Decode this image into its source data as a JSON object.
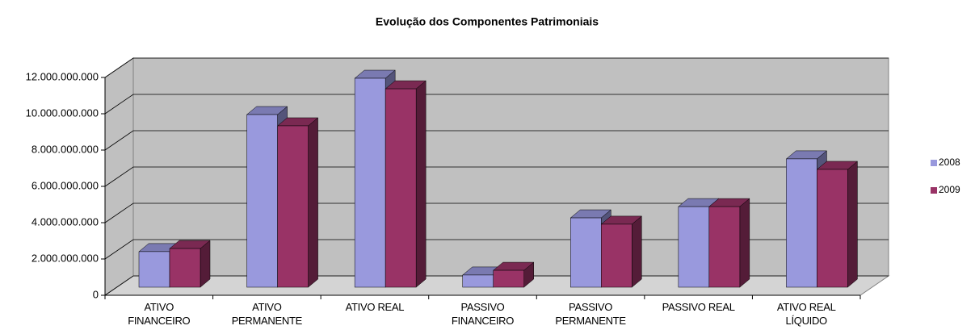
{
  "chart_data": {
    "type": "bar3d",
    "title": "Evolução dos Componentes Patrimoniais",
    "categories": [
      "ATIVO FINANCEIRO",
      "ATIVO PERMANENTE",
      "ATIVO REAL",
      "PASSIVO FINANCEIRO",
      "PASSIVO PERMANENTE",
      "PASSIVO REAL",
      "ATIVO REAL LÍQUIDO"
    ],
    "series": [
      {
        "name": "2008",
        "color": "#9999dd",
        "values": [
          1960000000,
          9510000000,
          11510000000,
          670000000,
          3820000000,
          4440000000,
          7070000000
        ]
      },
      {
        "name": "2009",
        "color": "#993366",
        "values": [
          2130000000,
          8890000000,
          10930000000,
          930000000,
          3470000000,
          4440000000,
          6490000000
        ]
      }
    ],
    "ylim": [
      0,
      12000000000
    ],
    "yticks": [
      0,
      {
        "value": 2000000000,
        "label": "2.000.000.000"
      },
      {
        "value": 4000000000,
        "label": "4.000.000.000"
      },
      {
        "value": 6000000000,
        "label": "6.000.000.000"
      },
      {
        "value": 8000000000,
        "label": "8.000.000.000"
      },
      {
        "value": 10000000000,
        "label": "10.000.000.000"
      },
      {
        "value": 12000000000,
        "label": "12.000.000.000"
      }
    ],
    "grid": true,
    "legend": "right"
  }
}
